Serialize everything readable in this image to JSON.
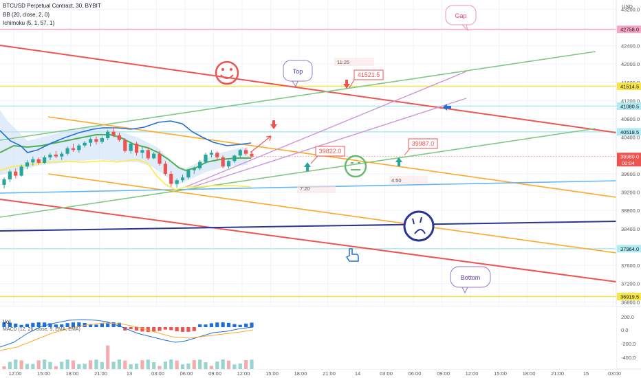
{
  "legend": {
    "symbol_line": "BTCUSD Perpetual Contract, 30, BYBIT",
    "bb_line": "BB (20, close, 2, 0)",
    "ichimoku_line": "Ichimoku (5, 1, 57, 1)",
    "vol_label": "Vol",
    "macd_label": "MACD (12, 26, close, 9, EMA, EMA)"
  },
  "chart_data": {
    "type": "candlestick",
    "price_axis": {
      "unit": "USD",
      "ticks": [
        "43200.0",
        "42400.0",
        "42000.0",
        "41600.0",
        "41200.0",
        "40800.0",
        "40400.0",
        "39600.0",
        "39200.0",
        "38800.0",
        "38400.0",
        "37600.0",
        "37200.0",
        "36800.0"
      ],
      "ylim": [
        36700,
        43400
      ]
    },
    "price_markers": [
      {
        "label": "42758.0",
        "value": 42758.0,
        "color": "#f7a8c4"
      },
      {
        "label": "41514.5",
        "value": 41514.5,
        "color": "#f5e44a"
      },
      {
        "label": "41080.5",
        "value": 41080.5,
        "color": "#b2ebf2"
      },
      {
        "label": "40518.5",
        "value": 40518.5,
        "color": "#b2ebf2"
      },
      {
        "label": "39980.0",
        "value": 39980.0,
        "color": "#ef5350",
        "sub": "00:04"
      },
      {
        "label": "37964.0",
        "value": 37964.0,
        "color": "#b2ebf2"
      },
      {
        "label": "36919.5",
        "value": 36919.5,
        "color": "#f5e44a"
      }
    ],
    "time_axis": [
      "12:00",
      "15:00",
      "18:00",
      "21:00",
      "13",
      "03:00",
      "06:00",
      "09:00",
      "12:00",
      "15:00",
      "18:00",
      "21:00",
      "14",
      "03:00",
      "06:00",
      "09:00",
      "12:00",
      "15:00",
      "18:00",
      "21:00",
      "15",
      "03:00"
    ],
    "candles": [
      [
        39360,
        39520,
        39280,
        39480
      ],
      [
        39480,
        39700,
        39420,
        39650
      ],
      [
        39650,
        39720,
        39500,
        39560
      ],
      [
        39560,
        39800,
        39540,
        39760
      ],
      [
        39760,
        39900,
        39700,
        39850
      ],
      [
        39850,
        39980,
        39780,
        39920
      ],
      [
        39920,
        39960,
        39800,
        39840
      ],
      [
        39840,
        40000,
        39820,
        39960
      ],
      [
        39960,
        40060,
        39900,
        40020
      ],
      [
        40020,
        40100,
        39940,
        39980
      ],
      [
        39980,
        40080,
        39900,
        40040
      ],
      [
        40040,
        40200,
        40000,
        40160
      ],
      [
        40160,
        40260,
        40080,
        40120
      ],
      [
        40120,
        40260,
        40060,
        40220
      ],
      [
        40220,
        40320,
        40180,
        40280
      ],
      [
        40280,
        40400,
        40200,
        40360
      ],
      [
        40360,
        40420,
        40240,
        40300
      ],
      [
        40300,
        40420,
        40260,
        40380
      ],
      [
        40380,
        40560,
        40340,
        40520
      ],
      [
        40520,
        40600,
        40400,
        40440
      ],
      [
        40440,
        40500,
        40300,
        40340
      ],
      [
        40340,
        40380,
        40060,
        40100
      ],
      [
        40100,
        40300,
        40040,
        40260
      ],
      [
        40260,
        40300,
        40000,
        40060
      ],
      [
        40060,
        40200,
        39940,
        40120
      ],
      [
        40120,
        40180,
        39900,
        39940
      ],
      [
        39940,
        40080,
        39920,
        40040
      ],
      [
        40040,
        40100,
        39780,
        39820
      ],
      [
        39820,
        39880,
        39560,
        39600
      ],
      [
        39600,
        39660,
        39320,
        39380
      ],
      [
        39380,
        39500,
        39300,
        39460
      ],
      [
        39460,
        39580,
        39420,
        39520
      ],
      [
        39520,
        39700,
        39480,
        39680
      ],
      [
        39680,
        39760,
        39600,
        39720
      ],
      [
        39720,
        39900,
        39680,
        39860
      ],
      [
        39860,
        40060,
        39820,
        40020
      ],
      [
        40020,
        40120,
        39960,
        40060
      ],
      [
        40060,
        40100,
        39900,
        39960
      ],
      [
        39960,
        40000,
        39720,
        39760
      ],
      [
        39760,
        39900,
        39720,
        39880
      ],
      [
        39880,
        40020,
        39840,
        40000
      ],
      [
        40000,
        40140,
        39960,
        40120
      ],
      [
        40120,
        40160,
        40000,
        40040
      ],
      [
        40040,
        40080,
        39940,
        39980
      ]
    ],
    "annotations": [
      {
        "text": "Gap",
        "type": "callout"
      },
      {
        "text": "Top",
        "type": "callout"
      },
      {
        "text": "Bottom",
        "type": "callout"
      },
      {
        "text": "41521.5",
        "type": "price-label"
      },
      {
        "text": "39822.0",
        "type": "price-label"
      },
      {
        "text": "39987.0",
        "type": "price-label"
      },
      {
        "text": "11:25",
        "type": "countdown"
      },
      {
        "text": "7:20",
        "type": "countdown"
      },
      {
        "text": "4:50",
        "type": "countdown"
      }
    ],
    "oscillator_axis": {
      "ticks": [
        "200.0",
        "0.0",
        "-200.0",
        "-400.0"
      ]
    }
  },
  "colors": {
    "bull": "#26a69a",
    "bear": "#ef5350",
    "bb_basis": "#4caf50",
    "bb_band": "#1e6fd9",
    "trend_red": "#ef5350",
    "trend_green": "#81c784",
    "trend_orange": "#ffa726",
    "trend_pink": "#ce93d8",
    "trend_blue": "#64b5f6",
    "trend_navy": "#283593",
    "yellow": "#ffeb3b"
  }
}
